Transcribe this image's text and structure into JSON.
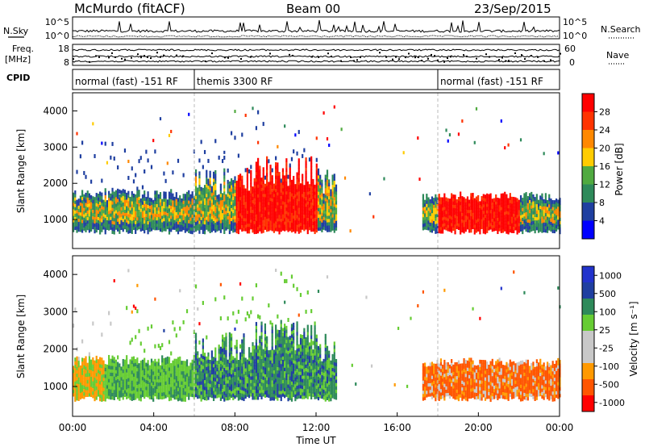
{
  "header": {
    "station": "McMurdo (fitACF)",
    "beam": "Beam 00",
    "date": "23/Sep/2015"
  },
  "left_labels": {
    "nsky": "N.Sky",
    "freq": "Freq.",
    "mhz": "[MHz]",
    "cpid": "CPID"
  },
  "right_labels": {
    "nsearch": "N.Search",
    "nave": "Nave"
  },
  "ticks": {
    "nsky_top": "10^5",
    "nsky_bottom": "10^0",
    "freq_top": "18",
    "freq_bottom": "8",
    "nave_top": "60",
    "nave_bottom": "0"
  },
  "cpid_segments": [
    {
      "label": "normal (fast) -151 RF",
      "start_h": 0,
      "end_h": 6.0
    },
    {
      "label": "themis 3300 RF",
      "start_h": 6.0,
      "end_h": 18.0
    },
    {
      "label": "normal (fast) -151 RF",
      "start_h": 18.0,
      "end_h": 24.0
    }
  ],
  "colors": {
    "power": [
      "#0000ff",
      "#1f3fa0",
      "#2e8a5a",
      "#50aa40",
      "#ffcc00",
      "#ff8800",
      "#ff3300",
      "#ff0000"
    ],
    "velocity": [
      "#ff0000",
      "#ff5500",
      "#ff9900",
      "#c8c8c8",
      "#c8c8c8",
      "#66cc33",
      "#2e8a5a",
      "#1f3fa0",
      "#2233cc"
    ]
  },
  "chart_data": [
    {
      "type": "heatmap",
      "name": "Power",
      "ylabel": "Slant Range [km]",
      "yticks": [
        "1000",
        "2000",
        "3000",
        "4000"
      ],
      "ylim": [
        200,
        4500
      ],
      "colorbar_label": "Power [dB]",
      "colorbar_ticks": [
        "4",
        "8",
        "12",
        "16",
        "20",
        "24",
        "28"
      ]
    },
    {
      "type": "heatmap",
      "name": "Velocity",
      "ylabel": "Slant Range [km]",
      "yticks": [
        "1000",
        "2000",
        "3000",
        "4000"
      ],
      "ylim": [
        200,
        4500
      ],
      "colorbar_label": "Velocity [m s⁻¹]",
      "colorbar_ticks": [
        "1000",
        "500",
        "100",
        "25",
        "-25",
        "-100",
        "-500",
        "-1000"
      ]
    }
  ],
  "xaxis": {
    "label": "Time UT",
    "ticks": [
      "00:00",
      "04:00",
      "08:00",
      "12:00",
      "16:00",
      "20:00",
      "00:00"
    ],
    "xlim_hours": [
      0,
      24
    ]
  }
}
